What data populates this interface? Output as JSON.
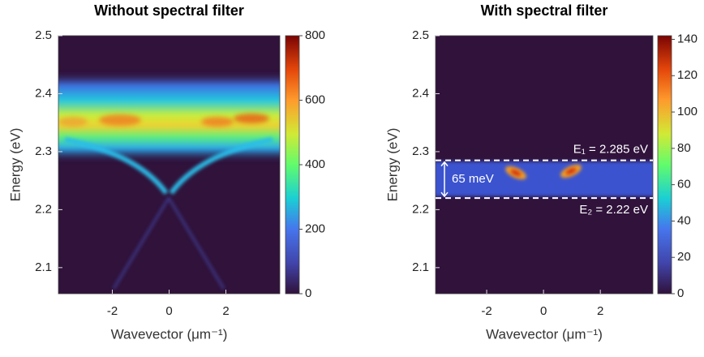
{
  "chart_data": [
    {
      "type": "heatmap",
      "title": "Without spectral filter",
      "x_label": "Wavevector (μm⁻¹)",
      "y_label": "Energy (eV)",
      "xlim": [
        -3.9,
        3.9
      ],
      "xticks": [
        -2,
        0,
        2
      ],
      "ylim": [
        2.055,
        2.5
      ],
      "yticks": [
        2.1,
        2.2,
        2.3,
        2.4,
        2.5
      ],
      "colorbar": {
        "lim": [
          0,
          800
        ],
        "ticks": [
          0,
          200,
          400,
          600,
          800
        ]
      }
    },
    {
      "type": "heatmap",
      "title": "With spectral filter",
      "x_label": "Wavevector (μm⁻¹)",
      "y_label": "Energy (eV)",
      "xlim": [
        -3.8,
        3.85
      ],
      "xticks": [
        -2,
        0,
        2
      ],
      "ylim": [
        2.055,
        2.5
      ],
      "yticks": [
        2.1,
        2.2,
        2.3,
        2.4,
        2.5
      ],
      "colorbar": {
        "lim": [
          0,
          142
        ],
        "ticks": [
          0,
          20,
          40,
          60,
          80,
          100,
          120,
          140
        ]
      },
      "annotations": [
        {
          "label": "E₁ = 2.285 eV",
          "y": 2.285
        },
        {
          "label": "E₂ = 2.22 eV",
          "y": 2.22
        }
      ],
      "span_label": "65 meV"
    }
  ]
}
